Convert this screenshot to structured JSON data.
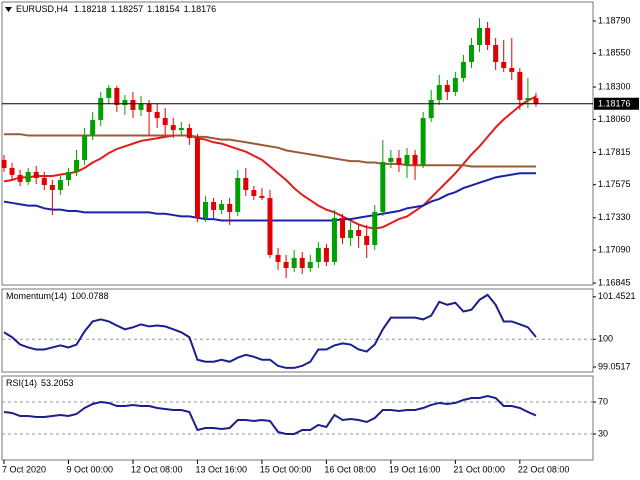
{
  "chart_data": [
    {
      "type": "candlestick",
      "title": "EURUSD,H4",
      "categories": [
        "7 Oct 2020",
        null,
        null,
        null,
        null,
        null,
        null,
        null,
        "9 Oct 00:00",
        null,
        null,
        null,
        null,
        null,
        null,
        null,
        "12 Oct 08:00",
        null,
        null,
        null,
        null,
        null,
        null,
        null,
        "13 Oct 16:00",
        null,
        null,
        null,
        null,
        null,
        null,
        null,
        "15 Oct 00:00",
        null,
        null,
        null,
        null,
        null,
        null,
        null,
        "16 Oct 08:00",
        null,
        null,
        null,
        null,
        null,
        null,
        null,
        "19 Oct 16:00",
        null,
        null,
        null,
        null,
        null,
        null,
        null,
        "21 Oct 00:00",
        null,
        null,
        null,
        null,
        null,
        null,
        null,
        "22 Oct 08:00",
        null,
        null
      ],
      "open": [
        1.17759,
        1.17699,
        1.17648,
        1.17596,
        1.1767,
        1.17625,
        1.17573,
        1.17536,
        1.1761,
        1.1767,
        1.17759,
        1.17944,
        1.18056,
        1.18219,
        1.18293,
        1.18167,
        1.18204,
        1.1813,
        1.18174,
        1.18115,
        1.1807,
        1.18018,
        1.17981,
        1.17996,
        1.17922,
        1.17328,
        1.17447,
        1.17388,
        1.17432,
        1.17373,
        1.17625,
        1.17536,
        1.17492,
        1.17477,
        1.17054,
        1.17002,
        1.16957,
        1.17032,
        1.16957,
        1.17002,
        1.17106,
        1.17002,
        1.17328,
        1.1718,
        1.17239,
        1.17195,
        1.17128,
        1.17373,
        1.17744,
        1.17774,
        1.17722,
        1.17796,
        1.17722,
        1.1807,
        1.18204,
        1.18315,
        1.18263,
        1.18367,
        1.18486,
        1.18612,
        1.18738,
        1.18612,
        1.18486,
        1.18441,
        1.18412,
        1.18204,
        1.18218
      ],
      "high": [
        1.17796,
        1.17737,
        1.17685,
        1.17699,
        1.17714,
        1.1767,
        1.1761,
        1.1764,
        1.17699,
        1.17833,
        1.17996,
        1.18115,
        1.18263,
        1.18315,
        1.18308,
        1.18241,
        1.18263,
        1.18234,
        1.18204,
        1.18174,
        1.18145,
        1.1807,
        1.18041,
        1.18026,
        1.17952,
        1.17492,
        1.17477,
        1.17462,
        1.17477,
        1.17685,
        1.17699,
        1.17566,
        1.17551,
        1.17536,
        1.17106,
        1.17054,
        1.17091,
        1.17076,
        1.17054,
        1.1715,
        1.17136,
        1.17388,
        1.17358,
        1.17299,
        1.17277,
        1.17277,
        1.17425,
        1.17907,
        1.17833,
        1.17833,
        1.17848,
        1.17833,
        1.18115,
        1.18278,
        1.1839,
        1.18352,
        1.18412,
        1.18538,
        1.18664,
        1.18812,
        1.18783,
        1.18664,
        1.18649,
        1.18664,
        1.18441,
        1.18367,
        1.18257
      ],
      "low": [
        1.1767,
        1.1761,
        1.17566,
        1.17573,
        1.17581,
        1.17536,
        1.17351,
        1.17499,
        1.17566,
        1.1764,
        1.17722,
        1.17907,
        1.18011,
        1.18174,
        1.18115,
        1.18093,
        1.1807,
        1.18085,
        1.17944,
        1.17996,
        1.17944,
        1.17922,
        1.17937,
        1.1787,
        1.17299,
        1.17299,
        1.17328,
        1.17358,
        1.17277,
        1.17343,
        1.17492,
        1.17462,
        1.17462,
        1.17032,
        1.16943,
        1.16883,
        1.16928,
        1.16913,
        1.16928,
        1.16957,
        1.16972,
        1.1698,
        1.17136,
        1.17121,
        1.17106,
        1.17032,
        1.17091,
        1.17343,
        1.17699,
        1.1767,
        1.17625,
        1.1761,
        1.17699,
        1.18041,
        1.18167,
        1.18204,
        1.18234,
        1.18338,
        1.18441,
        1.1856,
        1.18575,
        1.18427,
        1.18412,
        1.18352,
        1.1813,
        1.18145,
        1.18154
      ],
      "close": [
        1.17699,
        1.17648,
        1.17596,
        1.1767,
        1.17625,
        1.17573,
        1.17536,
        1.1761,
        1.1767,
        1.17759,
        1.17944,
        1.18056,
        1.18219,
        1.18293,
        1.18167,
        1.18204,
        1.1813,
        1.18174,
        1.18115,
        1.1807,
        1.18018,
        1.17981,
        1.17996,
        1.17922,
        1.17328,
        1.17447,
        1.17388,
        1.17432,
        1.17373,
        1.17625,
        1.17536,
        1.17492,
        1.17477,
        1.17054,
        1.17002,
        1.16957,
        1.17032,
        1.16957,
        1.17002,
        1.17106,
        1.17002,
        1.17328,
        1.1718,
        1.17239,
        1.17195,
        1.17128,
        1.17373,
        1.17744,
        1.17774,
        1.17722,
        1.17796,
        1.17722,
        1.1807,
        1.18204,
        1.18315,
        1.18263,
        1.18367,
        1.18486,
        1.18612,
        1.18738,
        1.18612,
        1.18486,
        1.18441,
        1.18412,
        1.18204,
        1.18218,
        1.18176
      ],
      "up_color": "#00a000",
      "down_color": "#e00000",
      "series": [
        {
          "color": "#e31b1b",
          "values": [
            1.176,
            1.1761,
            1.1763,
            1.1763,
            1.1764,
            1.1764,
            1.1764,
            1.1765,
            1.1766,
            1.1767,
            1.177,
            1.1774,
            1.1777,
            1.1781,
            1.1784,
            1.1786,
            1.1788,
            1.179,
            1.1791,
            1.1792,
            1.1793,
            1.1794,
            1.1794,
            1.1794,
            1.1792,
            1.1791,
            1.1789,
            1.1788,
            1.1786,
            1.1784,
            1.1782,
            1.1779,
            1.1776,
            1.1771,
            1.1766,
            1.1761,
            1.1755,
            1.175,
            1.1746,
            1.1742,
            1.1739,
            1.1737,
            1.1734,
            1.1731,
            1.1728,
            1.1726,
            1.1725,
            1.1726,
            1.1729,
            1.1732,
            1.1734,
            1.1738,
            1.1742,
            1.1748,
            1.1754,
            1.176,
            1.1766,
            1.1773,
            1.178,
            1.1786,
            1.1793,
            1.18,
            1.1806,
            1.1811,
            1.1816,
            1.182,
            1.1823
          ]
        },
        {
          "color": "#9b5a36",
          "values": [
            1.1795,
            1.1795,
            1.1795,
            1.1794,
            1.1794,
            1.1794,
            1.1794,
            1.1794,
            1.1794,
            1.1794,
            1.1794,
            1.1794,
            1.1794,
            1.1794,
            1.1794,
            1.1794,
            1.1794,
            1.1794,
            1.1794,
            1.1794,
            1.1794,
            1.1794,
            1.1794,
            1.1794,
            1.1793,
            1.1793,
            1.1792,
            1.1791,
            1.1791,
            1.179,
            1.1789,
            1.1788,
            1.1787,
            1.1786,
            1.1785,
            1.1783,
            1.1782,
            1.1781,
            1.178,
            1.1779,
            1.1778,
            1.1777,
            1.1776,
            1.1775,
            1.1775,
            1.1774,
            1.1774,
            1.1773,
            1.1773,
            1.1773,
            1.1772,
            1.1772,
            1.1772,
            1.1772,
            1.1772,
            1.1772,
            1.1772,
            1.1772,
            1.1771,
            1.1771,
            1.1771,
            1.1771,
            1.1771,
            1.1771,
            1.1771,
            1.1771,
            1.1771
          ]
        },
        {
          "color": "#1b22a8",
          "values": [
            1.1745,
            1.1744,
            1.1743,
            1.1742,
            1.1742,
            1.174,
            1.1739,
            1.1739,
            1.1738,
            1.1738,
            1.1737,
            1.1737,
            1.1737,
            1.1737,
            1.1737,
            1.1737,
            1.1737,
            1.1737,
            1.1737,
            1.1736,
            1.1736,
            1.1735,
            1.1734,
            1.1734,
            1.1733,
            1.1732,
            1.1732,
            1.1731,
            1.1731,
            1.1731,
            1.1731,
            1.1731,
            1.1731,
            1.1731,
            1.1731,
            1.1731,
            1.1731,
            1.1731,
            1.1731,
            1.1731,
            1.1731,
            1.1731,
            1.1732,
            1.1732,
            1.1733,
            1.1734,
            1.1735,
            1.1736,
            1.1737,
            1.1738,
            1.174,
            1.1741,
            1.1742,
            1.1745,
            1.1747,
            1.175,
            1.1752,
            1.1755,
            1.1757,
            1.1759,
            1.1761,
            1.1763,
            1.1764,
            1.1765,
            1.1766,
            1.1766,
            1.1766
          ]
        }
      ],
      "price_line": true,
      "ylim": [
        1.16831,
        1.18931
      ],
      "yticks": [
        {
          "value": 1.1879,
          "label": "1.18790"
        },
        {
          "value": 1.1855,
          "label": "1.18550"
        },
        {
          "value": 1.183,
          "label": "1.18300"
        },
        {
          "value": 1.1806,
          "label": "1.18060"
        },
        1.17815,
        1.17575,
        {
          "value": 1.1733,
          "label": "1.17330"
        },
        {
          "value": 1.1709,
          "label": "1.17090"
        },
        1.16845
      ]
    },
    {
      "type": "line",
      "title": "Momentum(14)",
      "color": "#1b1f8c",
      "values": [
        100.24,
        100.07,
        99.82,
        99.72,
        99.65,
        99.65,
        99.72,
        99.79,
        99.72,
        99.82,
        100.27,
        100.61,
        100.68,
        100.61,
        100.47,
        100.34,
        100.41,
        100.51,
        100.44,
        100.47,
        100.44,
        100.34,
        100.24,
        100.07,
        99.3,
        99.23,
        99.23,
        99.3,
        99.23,
        99.37,
        99.47,
        99.4,
        99.3,
        99.3,
        99.09,
        99.02,
        99.02,
        99.09,
        99.23,
        99.65,
        99.65,
        99.79,
        99.86,
        99.82,
        99.65,
        99.58,
        99.82,
        100.34,
        100.74,
        100.74,
        100.74,
        100.74,
        100.68,
        100.81,
        101.28,
        101.18,
        101.25,
        100.95,
        101.01,
        101.35,
        101.52,
        101.18,
        100.61,
        100.61,
        100.51,
        100.41,
        100.0788
      ],
      "ylim": [
        98.88,
        101.72
      ],
      "yticks": [
        101.4521,
        100,
        99.0517
      ],
      "level_lines": [
        100
      ]
    },
    {
      "type": "line",
      "title": "RSI(14)",
      "color": "#1b1f8c",
      "values": [
        57.5,
        56.3,
        52.5,
        52.5,
        51.3,
        51.3,
        52.5,
        53.8,
        52.5,
        55,
        62.5,
        67.5,
        70,
        68.8,
        65,
        65,
        66.3,
        65,
        65,
        62.5,
        61.3,
        60,
        60,
        57.5,
        35,
        37.5,
        37.5,
        36.3,
        37.5,
        47.5,
        47.5,
        46.3,
        47.5,
        46.3,
        32.5,
        30,
        30,
        35,
        35,
        41.3,
        38.8,
        53.8,
        47.5,
        48.8,
        47.5,
        45,
        50,
        60,
        60,
        58.8,
        60,
        60,
        62.5,
        66.3,
        68.8,
        67.5,
        68.8,
        72.5,
        75,
        75,
        77.5,
        75,
        65,
        65,
        62.5,
        57.5,
        53.2053
      ],
      "ylim": [
        -2.5,
        102.5
      ],
      "yticks": [
        70,
        30
      ],
      "level_lines": [
        70,
        30
      ]
    }
  ]
}
